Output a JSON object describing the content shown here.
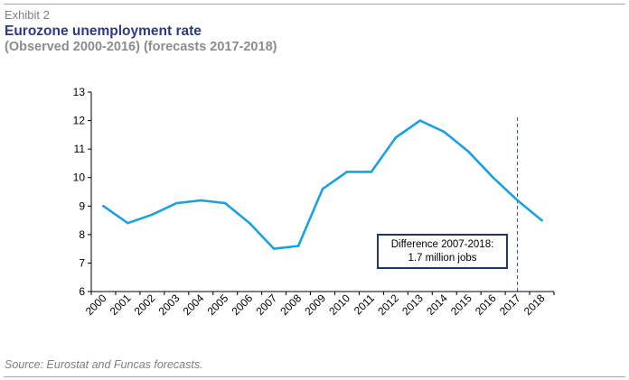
{
  "header": {
    "exhibit": "Exhibit 2",
    "title": "Eurozone unemployment rate",
    "subtitle": "(Observed 2000-2016) (forecasts 2017-2018)"
  },
  "annotation": {
    "line1": "Difference 2007-2018:",
    "line2": "1.7 million jobs"
  },
  "footer": {
    "source": "Source: Eurostat and Funcas forecasts."
  },
  "colors": {
    "line": "#1ba1e2",
    "forecast_marker": "#2e4a8c",
    "title": "#2e3a80"
  },
  "chart_data": {
    "type": "line",
    "title": "Eurozone unemployment rate",
    "subtitle": "(Observed 2000-2016) (forecasts 2017-2018)",
    "xlabel": "",
    "ylabel": "",
    "categories": [
      "2000",
      "2001",
      "2002",
      "2003",
      "2004",
      "2005",
      "2006",
      "2007",
      "2008",
      "2009",
      "2010",
      "2011",
      "2012",
      "2013",
      "2014",
      "2015",
      "2016",
      "2017",
      "2018"
    ],
    "series": [
      {
        "values": [
          9.0,
          8.4,
          8.7,
          9.1,
          9.2,
          9.1,
          8.4,
          7.5,
          7.6,
          9.6,
          10.2,
          10.2,
          11.4,
          12.0,
          11.6,
          10.9,
          10.0,
          9.2,
          8.5
        ]
      }
    ],
    "ylim": [
      6,
      13
    ],
    "yticks": [
      6,
      7,
      8,
      9,
      10,
      11,
      12,
      13
    ],
    "grid": false,
    "legend": "none",
    "forecast_marker_category": "2017"
  }
}
